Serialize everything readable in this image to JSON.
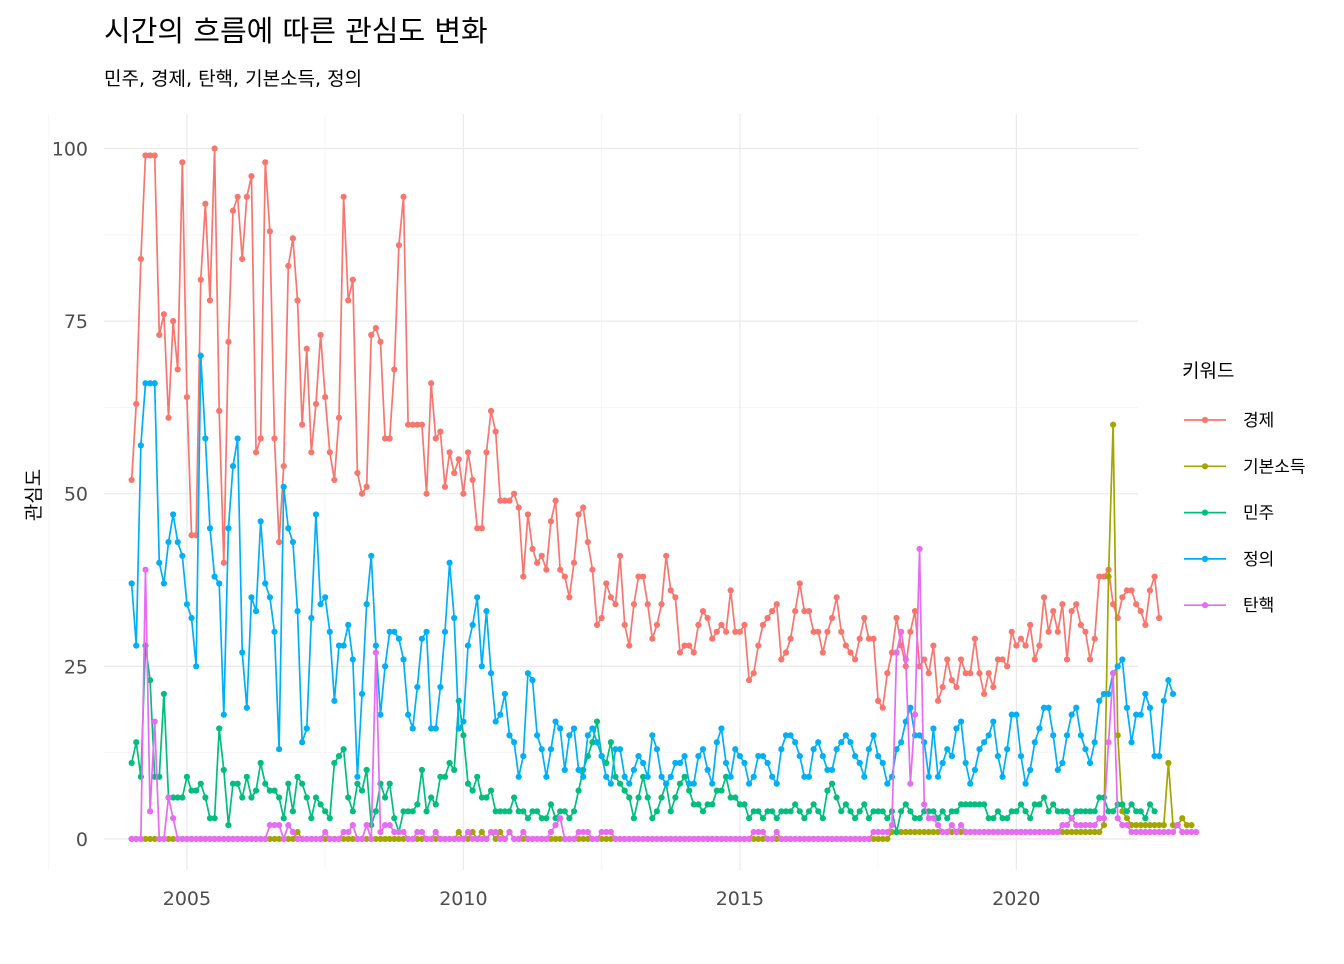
{
  "chart_data": {
    "type": "line",
    "title": "시간의 흐름에 따른 관심도 변화",
    "subtitle": "민주, 경제, 탄핵, 기본소득, 정의",
    "xlabel": "",
    "ylabel": "관심도",
    "xlim": [
      2003.5,
      2022.2
    ],
    "ylim": [
      -4.5,
      105
    ],
    "x_ticks": [
      "2005",
      "2010",
      "2015",
      "2020"
    ],
    "y_ticks": [
      "0",
      "25",
      "50",
      "75",
      "100"
    ],
    "grid": true,
    "legend": {
      "title": "키워드",
      "position": "right"
    },
    "series": [
      {
        "name": "경제",
        "color": "#F8766D",
        "x_start": 2004.0,
        "x_step_months": 1,
        "values": [
          52,
          63,
          84,
          99,
          99,
          99,
          73,
          76,
          61,
          75,
          68,
          98,
          64,
          44,
          44,
          81,
          92,
          78,
          100,
          62,
          40,
          72,
          91,
          93,
          84,
          93,
          96,
          56,
          58,
          98,
          88,
          58,
          43,
          54,
          83,
          87,
          78,
          60,
          71,
          56,
          63,
          73,
          64,
          56,
          52,
          61,
          93,
          78,
          81,
          53,
          50,
          51,
          73,
          74,
          72,
          58,
          58,
          68,
          86,
          93,
          60,
          60,
          60,
          60,
          50,
          66,
          58,
          59,
          51,
          56,
          53,
          55,
          50,
          56,
          52,
          45,
          45,
          56,
          62,
          59,
          49,
          49,
          49,
          50,
          48,
          38,
          47,
          42,
          40,
          41,
          39,
          46,
          49,
          39,
          38,
          35,
          40,
          47,
          48,
          43,
          39,
          31,
          32,
          37,
          35,
          34,
          41,
          31,
          28,
          34,
          38,
          38,
          34,
          29,
          31,
          34,
          41,
          36,
          35,
          27,
          28,
          28,
          27,
          31,
          33,
          32,
          29,
          30,
          31,
          30,
          36,
          30,
          30,
          31,
          23,
          24,
          28,
          31,
          32,
          33,
          34,
          26,
          27,
          29,
          33,
          37,
          33,
          33,
          30,
          30,
          27,
          30,
          32,
          35,
          30,
          28,
          27,
          26,
          29,
          32,
          29,
          29,
          20,
          19,
          24,
          27,
          32,
          28,
          25,
          30,
          33,
          25,
          26,
          24,
          28,
          20,
          22,
          26,
          23,
          22,
          26,
          24,
          24,
          29,
          24,
          21,
          24,
          22,
          26,
          26,
          25,
          30,
          28,
          29,
          28,
          31,
          26,
          28,
          35,
          30,
          33,
          30,
          34,
          26,
          33,
          34,
          31,
          30,
          26,
          29,
          38,
          38,
          39,
          34,
          32,
          35,
          36,
          36,
          34,
          33,
          31,
          36,
          38,
          32
        ]
      },
      {
        "name": "기본소득",
        "color": "#A3A500",
        "x_start": 2004.0,
        "x_step_months": 1,
        "values": [
          0,
          0,
          0,
          0,
          0,
          0,
          0,
          0,
          0,
          0,
          0,
          0,
          0,
          0,
          0,
          0,
          0,
          0,
          0,
          0,
          0,
          0,
          0,
          0,
          0,
          0,
          0,
          0,
          0,
          0,
          0,
          0,
          0,
          0,
          0,
          0,
          1,
          0,
          0,
          0,
          0,
          0,
          0,
          0,
          0,
          0,
          0,
          0,
          0,
          0,
          0,
          0,
          0,
          0,
          0,
          0,
          0,
          0,
          0,
          0,
          0,
          0,
          0,
          0,
          0,
          0,
          0,
          0,
          0,
          0,
          0,
          1,
          0,
          0,
          1,
          0,
          1,
          0,
          1,
          0,
          1,
          0,
          1,
          0,
          0,
          0,
          0,
          0,
          0,
          0,
          0,
          0,
          0,
          0,
          0,
          0,
          0,
          0,
          0,
          0,
          0,
          0,
          0,
          0,
          0,
          0,
          0,
          0,
          0,
          0,
          0,
          0,
          0,
          0,
          0,
          0,
          0,
          0,
          0,
          0,
          0,
          0,
          0,
          0,
          0,
          0,
          0,
          0,
          0,
          0,
          0,
          0,
          0,
          0,
          0,
          0,
          0,
          0,
          0,
          0,
          0,
          0,
          0,
          0,
          0,
          0,
          0,
          0,
          0,
          0,
          0,
          0,
          0,
          0,
          0,
          0,
          0,
          0,
          0,
          0,
          0,
          0,
          0,
          0,
          0,
          1,
          1,
          1,
          1,
          1,
          1,
          1,
          1,
          1,
          1,
          1,
          1,
          1,
          1,
          1,
          1,
          1,
          1,
          1,
          1,
          1,
          1,
          1,
          1,
          1,
          1,
          1,
          1,
          1,
          1,
          1,
          1,
          1,
          1,
          1,
          1,
          1,
          1,
          1,
          1,
          1,
          1,
          1,
          1,
          1,
          1,
          2,
          38,
          60,
          15,
          4,
          3,
          2,
          2,
          2,
          2,
          2,
          2,
          2,
          2,
          11,
          2,
          2,
          3,
          2,
          2
        ]
      },
      {
        "name": "민주",
        "color": "#00BF7D",
        "x_start": 2004.0,
        "x_step_months": 1,
        "values": [
          11,
          14,
          9,
          28,
          23,
          9,
          9,
          21,
          6,
          6,
          6,
          6,
          9,
          7,
          7,
          8,
          6,
          3,
          3,
          16,
          10,
          2,
          8,
          8,
          6,
          9,
          6,
          7,
          11,
          8,
          7,
          7,
          6,
          3,
          8,
          4,
          9,
          8,
          6,
          3,
          6,
          5,
          4,
          3,
          11,
          12,
          13,
          6,
          4,
          8,
          7,
          10,
          2,
          4,
          8,
          6,
          8,
          3,
          1,
          4,
          4,
          4,
          5,
          10,
          4,
          6,
          5,
          9,
          9,
          11,
          10,
          20,
          15,
          8,
          7,
          9,
          6,
          6,
          7,
          4,
          4,
          4,
          4,
          6,
          4,
          4,
          3,
          4,
          4,
          3,
          3,
          5,
          3,
          4,
          4,
          3,
          4,
          7,
          10,
          12,
          14,
          17,
          12,
          11,
          14,
          9,
          8,
          7,
          6,
          3,
          6,
          9,
          6,
          3,
          4,
          6,
          8,
          4,
          6,
          8,
          9,
          7,
          5,
          5,
          4,
          5,
          5,
          7,
          7,
          9,
          6,
          6,
          5,
          5,
          3,
          4,
          4,
          3,
          4,
          4,
          3,
          4,
          4,
          4,
          5,
          4,
          3,
          4,
          5,
          4,
          3,
          7,
          8,
          6,
          4,
          5,
          4,
          3,
          4,
          5,
          3,
          4,
          4,
          4,
          3,
          4,
          1,
          4,
          5,
          4,
          3,
          3,
          4,
          4,
          4,
          3,
          4,
          3,
          4,
          4,
          5,
          5,
          5,
          5,
          5,
          5,
          3,
          3,
          4,
          3,
          3,
          4,
          4,
          5,
          4,
          3,
          5,
          5,
          6,
          4,
          5,
          4,
          4,
          4,
          3,
          4,
          4,
          4,
          4,
          4,
          6,
          6,
          4,
          4,
          5,
          5,
          4,
          5,
          4,
          4,
          3,
          5,
          4
        ]
      },
      {
        "name": "정의",
        "color": "#00B0F6",
        "x_start": 2004.0,
        "x_step_months": 1,
        "values": [
          37,
          28,
          57,
          66,
          66,
          66,
          40,
          37,
          43,
          47,
          43,
          41,
          34,
          32,
          25,
          70,
          58,
          45,
          38,
          37,
          18,
          45,
          54,
          58,
          27,
          19,
          35,
          33,
          46,
          37,
          35,
          30,
          13,
          51,
          45,
          43,
          33,
          14,
          16,
          32,
          47,
          34,
          35,
          30,
          20,
          28,
          28,
          31,
          26,
          9,
          21,
          34,
          41,
          28,
          18,
          25,
          30,
          30,
          29,
          26,
          18,
          16,
          22,
          29,
          30,
          16,
          16,
          22,
          30,
          40,
          32,
          16,
          17,
          28,
          31,
          35,
          25,
          33,
          24,
          17,
          18,
          21,
          15,
          14,
          9,
          12,
          24,
          23,
          15,
          13,
          9,
          13,
          17,
          16,
          10,
          15,
          16,
          10,
          9,
          15,
          16,
          14,
          12,
          9,
          8,
          13,
          13,
          9,
          8,
          10,
          12,
          11,
          9,
          15,
          13,
          9,
          8,
          9,
          11,
          11,
          12,
          8,
          8,
          12,
          13,
          10,
          8,
          14,
          16,
          11,
          9,
          13,
          12,
          11,
          8,
          9,
          12,
          12,
          11,
          9,
          8,
          13,
          15,
          15,
          14,
          12,
          9,
          9,
          13,
          14,
          12,
          10,
          10,
          13,
          14,
          15,
          14,
          12,
          11,
          9,
          13,
          15,
          12,
          11,
          8,
          9,
          13,
          14,
          17,
          19,
          15,
          15,
          14,
          9,
          16,
          9,
          11,
          13,
          12,
          16,
          17,
          11,
          8,
          10,
          13,
          14,
          15,
          17,
          12,
          9,
          13,
          18,
          18,
          12,
          8,
          10,
          14,
          16,
          19,
          19,
          15,
          10,
          11,
          15,
          18,
          19,
          15,
          13,
          11,
          14,
          20,
          21,
          21,
          24,
          25,
          26,
          19,
          14,
          18,
          18,
          21,
          19,
          12,
          12,
          20,
          23,
          21
        ]
      },
      {
        "name": "탄핵",
        "color": "#E76BF3",
        "x_start": 2004.0,
        "x_step_months": 1,
        "values": [
          0,
          0,
          0,
          39,
          4,
          17,
          0,
          0,
          6,
          3,
          0,
          0,
          0,
          0,
          0,
          0,
          0,
          0,
          0,
          0,
          0,
          0,
          0,
          0,
          0,
          0,
          0,
          0,
          0,
          0,
          2,
          2,
          2,
          0,
          2,
          1,
          0,
          0,
          0,
          0,
          0,
          0,
          1,
          0,
          0,
          0,
          1,
          1,
          2,
          0,
          0,
          2,
          0,
          27,
          1,
          2,
          2,
          1,
          1,
          1,
          0,
          0,
          1,
          1,
          0,
          0,
          1,
          0,
          0,
          0,
          0,
          0,
          0,
          1,
          0,
          0,
          0,
          0,
          1,
          1,
          0,
          0,
          1,
          0,
          0,
          1,
          0,
          0,
          0,
          0,
          0,
          1,
          2,
          3,
          0,
          0,
          0,
          1,
          1,
          1,
          0,
          0,
          1,
          1,
          1,
          0,
          0,
          0,
          0,
          0,
          0,
          0,
          0,
          0,
          0,
          0,
          0,
          0,
          0,
          0,
          0,
          0,
          0,
          0,
          0,
          0,
          0,
          0,
          0,
          0,
          0,
          0,
          0,
          0,
          0,
          1,
          1,
          1,
          0,
          0,
          1,
          0,
          0,
          0,
          0,
          0,
          0,
          0,
          0,
          0,
          0,
          0,
          0,
          0,
          0,
          0,
          0,
          0,
          0,
          0,
          0,
          1,
          1,
          1,
          1,
          2,
          27,
          30,
          26,
          8,
          18,
          42,
          5,
          3,
          3,
          2,
          1,
          1,
          2,
          1,
          2,
          1,
          1,
          1,
          1,
          1,
          1,
          1,
          1,
          1,
          1,
          1,
          1,
          1,
          1,
          1,
          1,
          1,
          1,
          1,
          1,
          1,
          2,
          2,
          3,
          2,
          2,
          2,
          2,
          2,
          3,
          3,
          14,
          24,
          3,
          2,
          2,
          1,
          1,
          1,
          1,
          1,
          1,
          1,
          1,
          1,
          1,
          2,
          1,
          1,
          1,
          1
        ]
      }
    ]
  }
}
